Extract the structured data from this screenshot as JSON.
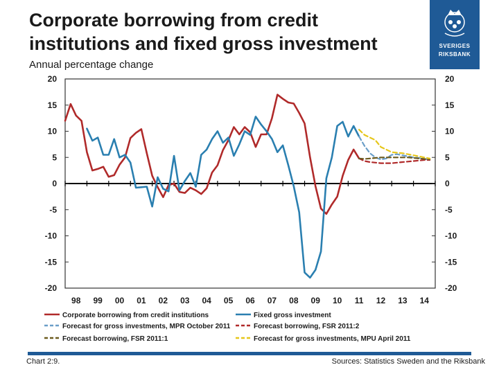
{
  "header": {
    "title": "Corporate borrowing from credit institutions and fixed gross investment",
    "subtitle": "Annual percentage change"
  },
  "logo": {
    "name": "riksbank-logo-icon",
    "line1": "SVERIGES",
    "line2": "RIKSBANK"
  },
  "footer": {
    "chart_label": "Chart 2:9.",
    "sources": "Sources: Statistics Sweden and the Riksbank"
  },
  "colors": {
    "borrowing": "#b02a2a",
    "investment": "#2a7fb0",
    "fc_invest_mpr": "#6a9ec8",
    "fc_borrow_fsr2": "#b02a2a",
    "fc_borrow_fsr1": "#6b5a1e",
    "fc_invest_mpu": "#e6c619",
    "brand": "#1f5a96"
  },
  "chart_data": {
    "type": "line",
    "title": "Corporate borrowing from credit institutions and fixed gross investment",
    "ylabel": "Annual percentage change",
    "xlim": [
      1998,
      2015
    ],
    "ylim": [
      -20,
      20
    ],
    "yticks": [
      20,
      15,
      10,
      5,
      0,
      -5,
      -10,
      -15,
      -20
    ],
    "xtick_labels": [
      "98",
      "99",
      "00",
      "01",
      "02",
      "03",
      "04",
      "05",
      "06",
      "07",
      "08",
      "09",
      "10",
      "11",
      "12",
      "13",
      "14"
    ],
    "grid": false,
    "legend_position": "bottom",
    "series": [
      {
        "name": "Corporate borrowing from credit institutions",
        "key": "borrowing",
        "dashed": false,
        "x": [
          1998.0,
          1998.25,
          1998.5,
          1998.75,
          1999.0,
          1999.25,
          1999.5,
          1999.75,
          2000.0,
          2000.25,
          2000.5,
          2000.75,
          2001.0,
          2001.25,
          2001.5,
          2001.75,
          2002.0,
          2002.25,
          2002.5,
          2002.75,
          2003.0,
          2003.25,
          2003.5,
          2003.75,
          2004.0,
          2004.25,
          2004.5,
          2004.75,
          2005.0,
          2005.25,
          2005.5,
          2005.75,
          2006.0,
          2006.25,
          2006.5,
          2006.75,
          2007.0,
          2007.25,
          2007.5,
          2007.75,
          2008.0,
          2008.25,
          2008.5,
          2008.75,
          2009.0,
          2009.25,
          2009.5,
          2009.75,
          2010.0,
          2010.25,
          2010.5,
          2010.75,
          2011.0,
          2011.25,
          2011.5
        ],
        "y": [
          12.0,
          15.2,
          13.0,
          12.0,
          6.0,
          2.5,
          2.8,
          3.2,
          1.3,
          1.6,
          3.6,
          5.0,
          8.7,
          9.7,
          10.4,
          5.8,
          1.5,
          -0.7,
          -2.6,
          -0.3,
          0.0,
          -1.6,
          -1.8,
          -0.8,
          -1.3,
          -2.0,
          -0.9,
          2.1,
          3.5,
          6.4,
          8.3,
          10.8,
          9.4,
          10.8,
          9.8,
          7.0,
          9.4,
          9.4,
          12.5,
          17.0,
          16.2,
          15.5,
          15.3,
          13.5,
          11.5,
          5.0,
          -0.5,
          -4.8,
          -5.8,
          -4.0,
          -2.5,
          1.5,
          4.5,
          6.5,
          4.8
        ]
      },
      {
        "name": "Fixed gross investment",
        "key": "investment",
        "dashed": false,
        "x": [
          1999.0,
          1999.25,
          1999.5,
          1999.75,
          2000.0,
          2000.25,
          2000.5,
          2000.75,
          2001.0,
          2001.25,
          2001.5,
          2001.75,
          2002.0,
          2002.25,
          2002.5,
          2002.75,
          2003.0,
          2003.25,
          2003.5,
          2003.75,
          2004.0,
          2004.25,
          2004.5,
          2004.75,
          2005.0,
          2005.25,
          2005.5,
          2005.75,
          2006.0,
          2006.25,
          2006.5,
          2006.75,
          2007.0,
          2007.25,
          2007.5,
          2007.75,
          2008.0,
          2008.25,
          2008.5,
          2008.75,
          2009.0,
          2009.25,
          2009.5,
          2009.75,
          2010.0,
          2010.25,
          2010.5,
          2010.75,
          2011.0,
          2011.25,
          2011.5
        ],
        "y": [
          10.5,
          8.2,
          8.8,
          5.5,
          5.5,
          8.5,
          5.0,
          5.5,
          4.0,
          -0.8,
          -0.7,
          -0.6,
          -4.4,
          1.2,
          -1.0,
          -1.5,
          5.3,
          -1.3,
          0.5,
          2.0,
          -0.6,
          5.5,
          6.5,
          8.5,
          10.0,
          7.8,
          8.8,
          5.3,
          7.5,
          10.0,
          9.3,
          12.8,
          11.3,
          10.0,
          8.5,
          6.0,
          7.3,
          3.5,
          -0.5,
          -5.5,
          -17.0,
          -18.0,
          -16.5,
          -13.0,
          1.0,
          5.0,
          11.0,
          11.8,
          9.0,
          11.0,
          9.0
        ]
      },
      {
        "name": "Forecast for gross investments, MPR October 2011",
        "key": "fc_invest_mpr",
        "dashed": true,
        "x": [
          2011.5,
          2011.75,
          2012.0,
          2012.25,
          2012.5,
          2012.75,
          2013.0,
          2013.25,
          2013.5,
          2013.75,
          2014.0,
          2014.25,
          2014.5,
          2014.75
        ],
        "y": [
          9.0,
          7.2,
          5.8,
          5.0,
          4.6,
          4.8,
          5.5,
          5.6,
          5.4,
          5.2,
          5.0,
          4.9,
          4.7,
          4.6
        ]
      },
      {
        "name": "Forecast borrowing, FSR 2011:2",
        "key": "fc_borrow_fsr2",
        "dashed": true,
        "x": [
          2011.5,
          2011.75,
          2012.0,
          2012.25,
          2012.5,
          2012.75,
          2013.0,
          2013.25,
          2013.5,
          2013.75,
          2014.0,
          2014.25,
          2014.5,
          2014.75
        ],
        "y": [
          4.8,
          4.3,
          4.1,
          4.0,
          3.9,
          3.9,
          3.9,
          4.0,
          4.1,
          4.2,
          4.3,
          4.4,
          4.5,
          4.5
        ]
      },
      {
        "name": "Forecast borrowing, FSR 2011:1",
        "key": "fc_borrow_fsr1",
        "dashed": true,
        "x": [
          2011.5,
          2011.75,
          2012.0,
          2012.25,
          2012.5,
          2012.75,
          2013.0,
          2013.25,
          2013.5,
          2013.75,
          2014.0,
          2014.25,
          2014.5,
          2014.75
        ],
        "y": [
          4.8,
          4.7,
          4.8,
          4.9,
          5.0,
          5.0,
          5.0,
          5.0,
          5.0,
          5.0,
          4.9,
          4.8,
          4.7,
          4.6
        ]
      },
      {
        "name": "Forecast for gross investments, MPU April 2011",
        "key": "fc_invest_mpu",
        "dashed": true,
        "x": [
          2011.5,
          2011.75,
          2012.0,
          2012.25,
          2012.5,
          2012.75,
          2013.0,
          2013.25,
          2013.5,
          2013.75,
          2014.0,
          2014.25,
          2014.5,
          2014.75
        ],
        "y": [
          10.3,
          9.3,
          8.8,
          8.3,
          7.0,
          6.5,
          6.0,
          5.9,
          5.8,
          5.6,
          5.4,
          5.2,
          5.0,
          4.8
        ]
      }
    ],
    "legend_order": [
      "borrowing",
      "investment",
      "fc_invest_mpr",
      "fc_borrow_fsr2",
      "fc_borrow_fsr1",
      "fc_invest_mpu"
    ]
  }
}
